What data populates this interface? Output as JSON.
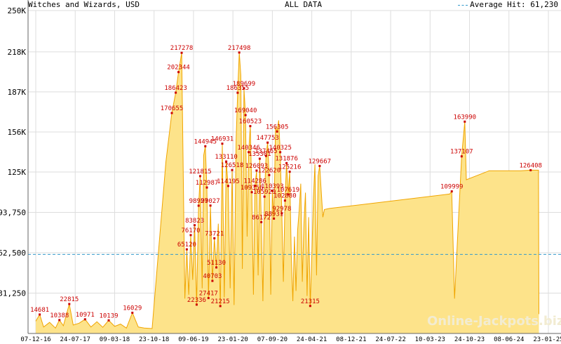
{
  "header": {
    "title": "Witches and Wizards, USD",
    "subtitle": "ALL DATA",
    "legend_label": "Average Hit: 61,230"
  },
  "watermark": "Online-Jackpots.biz",
  "colors": {
    "area_fill": "#fde38a",
    "area_stroke": "#f0a500",
    "label": "#cc0000",
    "average_line": "#3399cc",
    "grid": "#dddddd",
    "axis": "#666666",
    "background": "#ffffff"
  },
  "chart_data": {
    "type": "area",
    "title": "Witches and Wizards, USD",
    "subtitle": "ALL DATA",
    "xlabel": "",
    "ylabel": "",
    "ylim": [
      0,
      250000
    ],
    "y_ticks": [
      {
        "value": 0,
        "label": ""
      },
      {
        "value": 31250,
        "label": "31,250"
      },
      {
        "value": 62500,
        "label": "62,500"
      },
      {
        "value": 93750,
        "label": "93,750"
      },
      {
        "value": 125000,
        "label": "125K"
      },
      {
        "value": 156000,
        "label": "156K"
      },
      {
        "value": 187000,
        "label": "187K"
      },
      {
        "value": 218000,
        "label": "218K"
      },
      {
        "value": 250000,
        "label": "250K"
      }
    ],
    "x_ticks": [
      "07-12-16",
      "24-07-17",
      "09-03-18",
      "23-10-18",
      "09-06-19",
      "23-01-20",
      "07-09-20",
      "24-04-21",
      "08-12-21",
      "24-07-22",
      "10-03-23",
      "24-10-23",
      "08-06-24",
      "23-01-25"
    ],
    "grid": true,
    "average": {
      "label": "Average Hit",
      "value": 61230
    },
    "series": [
      {
        "points": [
          {
            "x": 0.0,
            "y": 9500,
            "label": ""
          },
          {
            "x": 0.1,
            "y": 14681,
            "label": "14681"
          },
          {
            "x": 0.2,
            "y": 5000,
            "label": ""
          },
          {
            "x": 0.35,
            "y": 8600,
            "label": ""
          },
          {
            "x": 0.5,
            "y": 4200,
            "label": ""
          },
          {
            "x": 0.6,
            "y": 10388,
            "label": "10388"
          },
          {
            "x": 0.7,
            "y": 6000,
            "label": ""
          },
          {
            "x": 0.85,
            "y": 22815,
            "label": "22815"
          },
          {
            "x": 0.95,
            "y": 6500,
            "label": ""
          },
          {
            "x": 1.1,
            "y": 8000,
            "label": ""
          },
          {
            "x": 1.25,
            "y": 10971,
            "label": "10971"
          },
          {
            "x": 1.4,
            "y": 5000,
            "label": ""
          },
          {
            "x": 1.55,
            "y": 9100,
            "label": ""
          },
          {
            "x": 1.7,
            "y": 4800,
            "label": ""
          },
          {
            "x": 1.85,
            "y": 10139,
            "label": "10139"
          },
          {
            "x": 2.0,
            "y": 5500,
            "label": ""
          },
          {
            "x": 2.15,
            "y": 7300,
            "label": ""
          },
          {
            "x": 2.3,
            "y": 4200,
            "label": ""
          },
          {
            "x": 2.45,
            "y": 16029,
            "label": "16029"
          },
          {
            "x": 2.6,
            "y": 5000,
            "label": ""
          },
          {
            "x": 2.75,
            "y": 4200,
            "label": ""
          },
          {
            "x": 2.95,
            "y": 3800,
            "label": ""
          },
          {
            "x": 3.3,
            "y": 133000,
            "label": ""
          },
          {
            "x": 3.45,
            "y": 170655,
            "label": "170655"
          },
          {
            "x": 3.55,
            "y": 186423,
            "label": "186423"
          },
          {
            "x": 3.62,
            "y": 202344,
            "label": "202344"
          },
          {
            "x": 3.7,
            "y": 217278,
            "label": "217278"
          },
          {
            "x": 3.78,
            "y": 27000,
            "label": ""
          },
          {
            "x": 3.83,
            "y": 65120,
            "label": "65120"
          },
          {
            "x": 3.88,
            "y": 30000,
            "label": ""
          },
          {
            "x": 3.93,
            "y": 76170,
            "label": "76170"
          },
          {
            "x": 3.98,
            "y": 41500,
            "label": ""
          },
          {
            "x": 4.03,
            "y": 83823,
            "label": "83823"
          },
          {
            "x": 4.08,
            "y": 22336,
            "label": "22336"
          },
          {
            "x": 4.13,
            "y": 98927,
            "label": "98927"
          },
          {
            "x": 4.17,
            "y": 121815,
            "label": "121815"
          },
          {
            "x": 4.22,
            "y": 35000,
            "label": ""
          },
          {
            "x": 4.26,
            "y": 138000,
            "label": ""
          },
          {
            "x": 4.3,
            "y": 144945,
            "label": "144945"
          },
          {
            "x": 4.34,
            "y": 112987,
            "label": "112987"
          },
          {
            "x": 4.38,
            "y": 27417,
            "label": "27417"
          },
          {
            "x": 4.43,
            "y": 99027,
            "label": "99027"
          },
          {
            "x": 4.48,
            "y": 40703,
            "label": "40703"
          },
          {
            "x": 4.53,
            "y": 73721,
            "label": "73721"
          },
          {
            "x": 4.58,
            "y": 51130,
            "label": "51130"
          },
          {
            "x": 4.63,
            "y": 85000,
            "label": ""
          },
          {
            "x": 4.68,
            "y": 21215,
            "label": "21215"
          },
          {
            "x": 4.73,
            "y": 146931,
            "label": "146931"
          },
          {
            "x": 4.78,
            "y": 28000,
            "label": ""
          },
          {
            "x": 4.83,
            "y": 133110,
            "label": "133110"
          },
          {
            "x": 4.88,
            "y": 114195,
            "label": "114195"
          },
          {
            "x": 4.93,
            "y": 35000,
            "label": ""
          },
          {
            "x": 4.98,
            "y": 126518,
            "label": "126518"
          },
          {
            "x": 5.03,
            "y": 22000,
            "label": ""
          },
          {
            "x": 5.08,
            "y": 150000,
            "label": ""
          },
          {
            "x": 5.12,
            "y": 186355,
            "label": "186355"
          },
          {
            "x": 5.16,
            "y": 217498,
            "label": "217498"
          },
          {
            "x": 5.2,
            "y": 200000,
            "label": ""
          },
          {
            "x": 5.24,
            "y": 50000,
            "label": ""
          },
          {
            "x": 5.28,
            "y": 189699,
            "label": "189699"
          },
          {
            "x": 5.32,
            "y": 169040,
            "label": "169040"
          },
          {
            "x": 5.36,
            "y": 75000,
            "label": ""
          },
          {
            "x": 5.4,
            "y": 140346,
            "label": "140346"
          },
          {
            "x": 5.44,
            "y": 160523,
            "label": "160523"
          },
          {
            "x": 5.48,
            "y": 109356,
            "label": "109356"
          },
          {
            "x": 5.52,
            "y": 30000,
            "label": ""
          },
          {
            "x": 5.56,
            "y": 114286,
            "label": "114286"
          },
          {
            "x": 5.6,
            "y": 126093,
            "label": "126093"
          },
          {
            "x": 5.64,
            "y": 45000,
            "label": ""
          },
          {
            "x": 5.68,
            "y": 135301,
            "label": "135301"
          },
          {
            "x": 5.72,
            "y": 86172,
            "label": "86172"
          },
          {
            "x": 5.76,
            "y": 25000,
            "label": ""
          },
          {
            "x": 5.8,
            "y": 105929,
            "label": "105929"
          },
          {
            "x": 5.84,
            "y": 137465,
            "label": "137465"
          },
          {
            "x": 5.88,
            "y": 147753,
            "label": "147753"
          },
          {
            "x": 5.92,
            "y": 122620,
            "label": "122620"
          },
          {
            "x": 5.96,
            "y": 30000,
            "label": ""
          },
          {
            "x": 6.0,
            "y": 110393,
            "label": "110393"
          },
          {
            "x": 6.04,
            "y": 88931,
            "label": "88931"
          },
          {
            "x": 6.08,
            "y": 160000,
            "label": ""
          },
          {
            "x": 6.12,
            "y": 156305,
            "label": "156305"
          },
          {
            "x": 6.16,
            "y": 165000,
            "label": ""
          },
          {
            "x": 6.2,
            "y": 140325,
            "label": "140325"
          },
          {
            "x": 6.24,
            "y": 92978,
            "label": "92978"
          },
          {
            "x": 6.28,
            "y": 40000,
            "label": ""
          },
          {
            "x": 6.32,
            "y": 102880,
            "label": "102880"
          },
          {
            "x": 6.36,
            "y": 131876,
            "label": "131876"
          },
          {
            "x": 6.4,
            "y": 107619,
            "label": "107619"
          },
          {
            "x": 6.44,
            "y": 125216,
            "label": "125216"
          },
          {
            "x": 6.48,
            "y": 60000,
            "label": ""
          },
          {
            "x": 6.52,
            "y": 25000,
            "label": ""
          },
          {
            "x": 6.56,
            "y": 75000,
            "label": ""
          },
          {
            "x": 6.6,
            "y": 33000,
            "label": ""
          },
          {
            "x": 6.64,
            "y": 80000,
            "label": ""
          },
          {
            "x": 6.68,
            "y": 95000,
            "label": ""
          },
          {
            "x": 6.72,
            "y": 116000,
            "label": ""
          },
          {
            "x": 6.76,
            "y": 40000,
            "label": ""
          },
          {
            "x": 6.8,
            "y": 85000,
            "label": ""
          },
          {
            "x": 6.84,
            "y": 109000,
            "label": ""
          },
          {
            "x": 6.88,
            "y": 29000,
            "label": ""
          },
          {
            "x": 6.92,
            "y": 90000,
            "label": ""
          },
          {
            "x": 6.96,
            "y": 21315,
            "label": "21315"
          },
          {
            "x": 7.0,
            "y": 60000,
            "label": ""
          },
          {
            "x": 7.04,
            "y": 104000,
            "label": ""
          },
          {
            "x": 7.08,
            "y": 131000,
            "label": ""
          },
          {
            "x": 7.12,
            "y": 45000,
            "label": ""
          },
          {
            "x": 7.16,
            "y": 122000,
            "label": ""
          },
          {
            "x": 7.2,
            "y": 129667,
            "label": "129667"
          },
          {
            "x": 7.24,
            "y": 110000,
            "label": ""
          },
          {
            "x": 7.28,
            "y": 90000,
            "label": ""
          },
          {
            "x": 7.32,
            "y": 96000,
            "label": ""
          },
          {
            "x": 7.45,
            "y": 96800,
            "label": ""
          },
          {
            "x": 10.5,
            "y": 108000,
            "label": ""
          },
          {
            "x": 10.55,
            "y": 109999,
            "label": "109999"
          },
          {
            "x": 10.62,
            "y": 27000,
            "label": ""
          },
          {
            "x": 10.8,
            "y": 137107,
            "label": "137107"
          },
          {
            "x": 10.88,
            "y": 163990,
            "label": "163990"
          },
          {
            "x": 10.92,
            "y": 119000,
            "label": ""
          },
          {
            "x": 11.5,
            "y": 126000,
            "label": ""
          },
          {
            "x": 12.3,
            "y": 126000,
            "label": ""
          },
          {
            "x": 12.55,
            "y": 126408,
            "label": "126408"
          },
          {
            "x": 12.75,
            "y": 126408,
            "label": ""
          },
          {
            "x": 12.76,
            "y": 15000,
            "label": ""
          }
        ]
      }
    ]
  }
}
